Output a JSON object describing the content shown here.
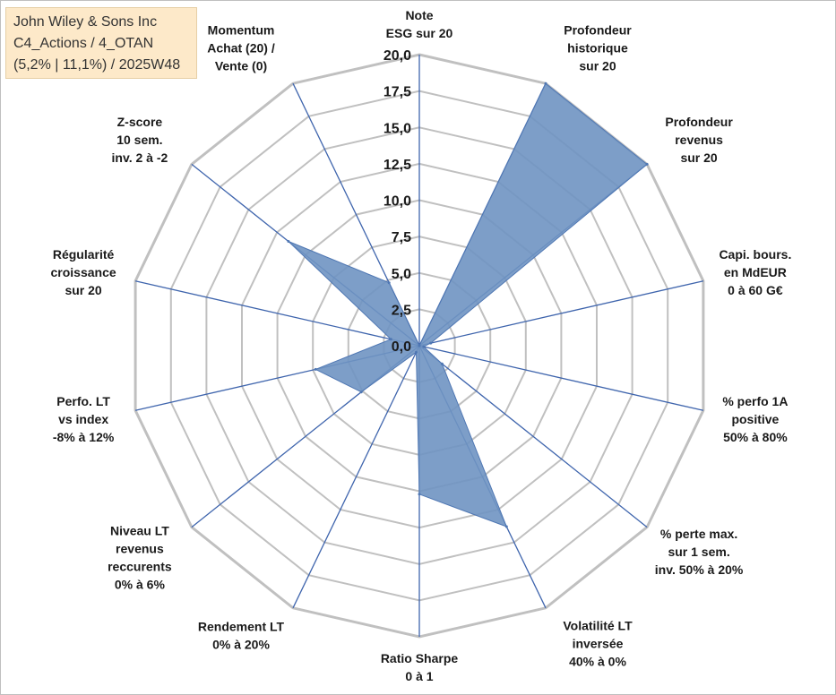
{
  "info_box": {
    "line1": "John Wiley & Sons Inc",
    "line2": "C4_Actions / 4_OTAN",
    "line3": "(5,2% | 11,1%) / 2025W48"
  },
  "colors": {
    "fill": "#6f93c2",
    "fill_stroke": "#4f77b3",
    "spoke": "#3f65ad",
    "ring": "#c0c0c0",
    "background": "#ffffff"
  },
  "chart_data": {
    "type": "radar",
    "title": "",
    "rmin": 0,
    "rmax": 20,
    "ticks": [
      "0,0",
      "2,5",
      "5,0",
      "7,5",
      "10,0",
      "12,5",
      "15,0",
      "17,5",
      "20,0"
    ],
    "axes": [
      {
        "lines": [
          "Note",
          "ESG sur 20"
        ],
        "value": 0
      },
      {
        "lines": [
          "Profondeur",
          "historique",
          "sur 20"
        ],
        "value": 20
      },
      {
        "lines": [
          "Profondeur",
          "revenus",
          "sur 20"
        ],
        "value": 20
      },
      {
        "lines": [
          "Capi. bours.",
          "en MdEUR",
          "0 à 60 G€"
        ],
        "value": 0.8
      },
      {
        "lines": [
          "% perfo 1A",
          "positive",
          "50% à 80%"
        ],
        "value": 0.3
      },
      {
        "lines": [
          "% perte max.",
          "sur 1 sem.",
          "inv. 50% à 20%"
        ],
        "value": 2
      },
      {
        "lines": [
          "Volatilité LT",
          "inversée",
          "40% à 0%"
        ],
        "value": 13.8
      },
      {
        "lines": [
          "Ratio Sharpe",
          "0 à 1"
        ],
        "value": 10.2
      },
      {
        "lines": [
          "Rendement LT",
          "0% à 20%"
        ],
        "value": 0.5
      },
      {
        "lines": [
          "Niveau LT",
          "revenus",
          "reccurents",
          "0% à 6%"
        ],
        "value": 5.1
      },
      {
        "lines": [
          "Perfo. LT",
          "vs index",
          "-8% à 12%"
        ],
        "value": 7.3
      },
      {
        "lines": [
          "Régularité",
          "croissance",
          "sur 20"
        ],
        "value": 2
      },
      {
        "lines": [
          "Z-score",
          "10 sem.",
          "inv. 2 à -2"
        ],
        "value": 11.5
      },
      {
        "lines": [
          "Momentum",
          "Achat (20) /",
          "Vente (0)"
        ],
        "value": 4.8
      }
    ]
  }
}
